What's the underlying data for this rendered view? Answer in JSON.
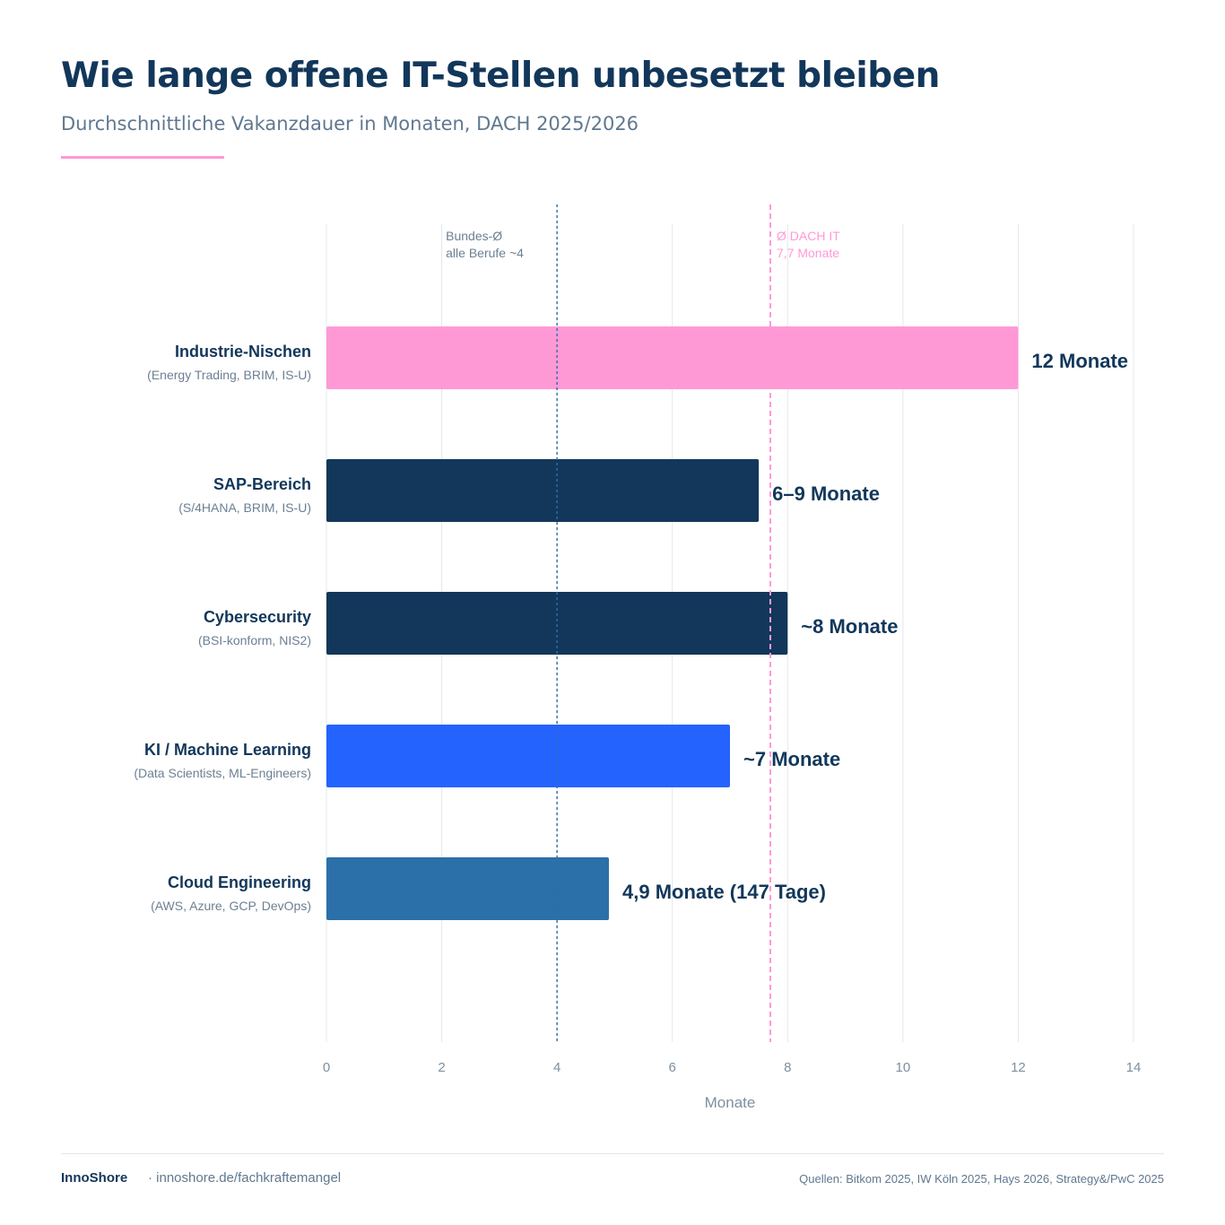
{
  "header": {
    "title": "Wie lange offene IT-Stellen unbesetzt bleiben",
    "subtitle": "Durchschnittliche Vakanzdauer in Monaten, DACH 2025/2026"
  },
  "chart_data": {
    "type": "bar",
    "orientation": "horizontal",
    "xlabel": "Monate",
    "xlim": [
      0,
      14
    ],
    "xticks": [
      0,
      2,
      4,
      6,
      8,
      10,
      12,
      14
    ],
    "grid": true,
    "categories": [
      "Industrie-Nischen",
      "SAP-Bereich",
      "Cybersecurity",
      "KI / Machine Learning",
      "Cloud Engineering"
    ],
    "category_details": [
      "(Energy Trading, BRIM, IS-U)",
      "(S/4HANA, BRIM, IS-U)",
      "(BSI-konform, NIS2)",
      "(Data Scientists, ML-Engineers)",
      "(AWS, Azure, GCP, DevOps)"
    ],
    "values": [
      12,
      7.5,
      8,
      7,
      4.9
    ],
    "value_labels": [
      "12 Monate",
      "6–9 Monate",
      "~8 Monate",
      "~7 Monate",
      "4,9 Monate (147 Tage)"
    ],
    "colors": [
      "#ff99d6",
      "#12375a",
      "#12375a",
      "#2563ff",
      "#2b70a8"
    ],
    "reference_lines": [
      {
        "value": 4,
        "label_lines": [
          "Bundes-Ø",
          "alle Berufe ~4"
        ],
        "color": "#2b70a8",
        "style": "dotted"
      },
      {
        "value": 7.7,
        "label_lines": [
          "Ø DACH IT",
          "7,7 Monate"
        ],
        "color": "#ff99d6",
        "style": "dashed"
      }
    ]
  },
  "footer": {
    "brand": "InnoShore",
    "link": "· innoshore.de/fachkraftemangel",
    "sources": "Quellen: Bitkom 2025, IW Köln 2025, Hays 2026, Strategy&/PwC 2025"
  }
}
